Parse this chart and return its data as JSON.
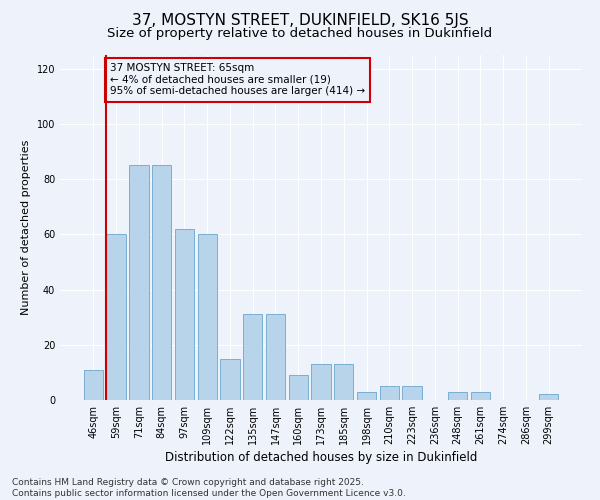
{
  "title": "37, MOSTYN STREET, DUKINFIELD, SK16 5JS",
  "subtitle": "Size of property relative to detached houses in Dukinfield",
  "xlabel": "Distribution of detached houses by size in Dukinfield",
  "ylabel": "Number of detached properties",
  "categories": [
    "46sqm",
    "59sqm",
    "71sqm",
    "84sqm",
    "97sqm",
    "109sqm",
    "122sqm",
    "135sqm",
    "147sqm",
    "160sqm",
    "173sqm",
    "185sqm",
    "198sqm",
    "210sqm",
    "223sqm",
    "236sqm",
    "248sqm",
    "261sqm",
    "274sqm",
    "286sqm",
    "299sqm"
  ],
  "values": [
    11,
    60,
    85,
    85,
    62,
    60,
    15,
    31,
    31,
    9,
    13,
    13,
    3,
    5,
    5,
    0,
    3,
    3,
    0,
    0,
    2
  ],
  "bar_color": "#b8d4eb",
  "bar_edge_color": "#7aaed4",
  "annotation_box_text": "37 MOSTYN STREET: 65sqm\n← 4% of detached houses are smaller (19)\n95% of semi-detached houses are larger (414) →",
  "annotation_box_color": "#cc0000",
  "vline_color": "#cc0000",
  "vline_x": 0.575,
  "ylim": [
    0,
    125
  ],
  "yticks": [
    0,
    20,
    40,
    60,
    80,
    100,
    120
  ],
  "background_color": "#eef2fb",
  "footer_text": "Contains HM Land Registry data © Crown copyright and database right 2025.\nContains public sector information licensed under the Open Government Licence v3.0.",
  "title_fontsize": 11,
  "subtitle_fontsize": 9.5,
  "xlabel_fontsize": 8.5,
  "ylabel_fontsize": 8,
  "tick_fontsize": 7,
  "annotation_fontsize": 7.5,
  "footer_fontsize": 6.5
}
